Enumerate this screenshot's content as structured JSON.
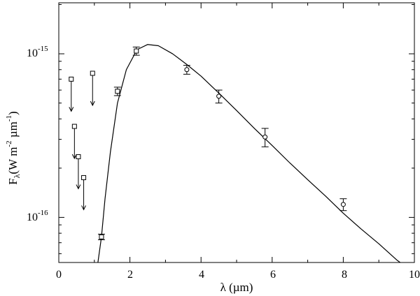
{
  "chart_data": {
    "type": "scatter",
    "xlabel": {
      "main": "λ (µm)"
    },
    "ylabel": {
      "F": "F",
      "sub": "λ",
      "units_a": "(W m",
      "exp_a": "-2",
      "units_b": " µm",
      "exp_b": "-1",
      "units_c": ")"
    },
    "x_ticks": [
      "0",
      "2",
      "4",
      "6",
      "8",
      "10"
    ],
    "y_ticks": [
      {
        "base": "10",
        "exp": "-15"
      },
      {
        "base": "10",
        "exp": "-16"
      }
    ],
    "xlim": [
      0,
      10
    ],
    "ylim": [
      5.3e-17,
      2.05e-15
    ],
    "yscale": "log",
    "grid": false,
    "series": [
      {
        "marker": "square",
        "points": [
          {
            "x": 1.2,
            "y": 7.6e-17,
            "err": 3e-18
          },
          {
            "x": 1.65,
            "y": 5.9e-16,
            "err": 3.5e-17
          },
          {
            "x": 2.18,
            "y": 1.04e-15,
            "err": 6e-17
          }
        ]
      },
      {
        "marker": "circle",
        "points": [
          {
            "x": 3.6,
            "y": 8e-16,
            "err": 5e-17
          },
          {
            "x": 4.5,
            "y": 5.5e-16,
            "err": 5e-17
          },
          {
            "x": 5.8,
            "y": 3.1e-16,
            "err": 4e-17
          },
          {
            "x": 8.0,
            "y": 1.2e-16,
            "err": 1e-17
          }
        ]
      },
      {
        "marker": "upper-limit",
        "points": [
          {
            "x": 0.35,
            "y": 7e-16
          },
          {
            "x": 0.44,
            "y": 3.6e-16
          },
          {
            "x": 0.55,
            "y": 2.35e-16
          },
          {
            "x": 0.7,
            "y": 1.75e-16
          },
          {
            "x": 0.95,
            "y": 7.6e-16
          }
        ]
      }
    ],
    "model_curve": {
      "points": [
        [
          1.1,
          5.3e-17
        ],
        [
          1.2,
          7.6e-17
        ],
        [
          1.3,
          1.3e-16
        ],
        [
          1.45,
          2.5e-16
        ],
        [
          1.65,
          5e-16
        ],
        [
          1.9,
          8e-16
        ],
        [
          2.2,
          1.06e-15
        ],
        [
          2.5,
          1.14e-15
        ],
        [
          2.8,
          1.12e-15
        ],
        [
          3.2,
          1e-15
        ],
        [
          3.6,
          8.6e-16
        ],
        [
          4.0,
          7.3e-16
        ],
        [
          4.5,
          5.75e-16
        ],
        [
          5.0,
          4.5e-16
        ],
        [
          5.5,
          3.5e-16
        ],
        [
          6.0,
          2.75e-16
        ],
        [
          6.5,
          2.15e-16
        ],
        [
          7.0,
          1.7e-16
        ],
        [
          7.5,
          1.35e-16
        ],
        [
          8.0,
          1.06e-16
        ],
        [
          8.5,
          8.5e-17
        ],
        [
          9.0,
          6.9e-17
        ],
        [
          9.5,
          5.5e-17
        ],
        [
          9.6,
          5.3e-17
        ]
      ]
    }
  }
}
